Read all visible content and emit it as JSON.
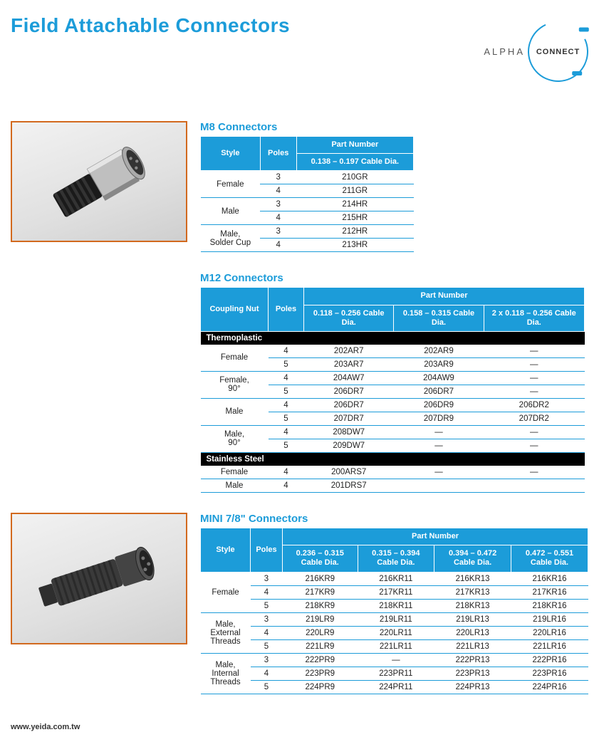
{
  "page": {
    "title": "Field Attachable Connectors",
    "footer": "www.yeida.com.tw"
  },
  "logo": {
    "left": "ALPHA",
    "right": "CONNECT"
  },
  "colors": {
    "accent": "#1c9cd9",
    "img_border": "#d2691e",
    "section_row_bg": "#000000"
  },
  "m8": {
    "title": "M8 Connectors",
    "headers": {
      "style": "Style",
      "poles": "Poles",
      "part_number": "Part Number",
      "dia1": "0.138 – 0.197 Cable Dia."
    },
    "rows": [
      {
        "style": "Female",
        "poles": "3",
        "pn": "210GR"
      },
      {
        "style": "",
        "poles": "4",
        "pn": "211GR"
      },
      {
        "style": "Male",
        "poles": "3",
        "pn": "214HR"
      },
      {
        "style": "",
        "poles": "4",
        "pn": "215HR"
      },
      {
        "style": "Male, Solder Cup",
        "poles": "3",
        "pn": "212HR"
      },
      {
        "style": "",
        "poles": "4",
        "pn": "213HR"
      }
    ]
  },
  "m12": {
    "title": "M12 Connectors",
    "headers": {
      "coupling": "Coupling Nut",
      "poles": "Poles",
      "part_number": "Part Number",
      "dia1": "0.118 – 0.256 Cable Dia.",
      "dia2": "0.158 – 0.315 Cable Dia.",
      "dia3": "2 x 0.118 – 0.256 Cable Dia."
    },
    "section1": "Thermoplastic",
    "section2": "Stainless Steel",
    "rows": [
      {
        "style": "Female",
        "poles": "4",
        "c1": "202AR7",
        "c2": "202AR9",
        "c3": "—"
      },
      {
        "style": "",
        "poles": "5",
        "c1": "203AR7",
        "c2": "203AR9",
        "c3": "—"
      },
      {
        "style": "Female, 90°",
        "poles": "4",
        "c1": "204AW7",
        "c2": "204AW9",
        "c3": "—"
      },
      {
        "style": "",
        "poles": "5",
        "c1": "206DR7",
        "c2": "206DR7",
        "c3": "—"
      },
      {
        "style": "Male",
        "poles": "4",
        "c1": "206DR7",
        "c2": "206DR9",
        "c3": "206DR2"
      },
      {
        "style": "",
        "poles": "5",
        "c1": "207DR7",
        "c2": "207DR9",
        "c3": "207DR2"
      },
      {
        "style": "Male, 90°",
        "poles": "4",
        "c1": "208DW7",
        "c2": "—",
        "c3": "—"
      },
      {
        "style": "",
        "poles": "5",
        "c1": "209DW7",
        "c2": "—",
        "c3": "—"
      }
    ],
    "rows2": [
      {
        "style": "Female",
        "poles": "4",
        "c1": "200ARS7",
        "c2": "—",
        "c3": "—"
      },
      {
        "style": "Male",
        "poles": "4",
        "c1": "201DRS7",
        "c2": "",
        "c3": ""
      }
    ]
  },
  "mini": {
    "title": "MINI 7/8\" Connectors",
    "headers": {
      "style": "Style",
      "poles": "Poles",
      "part_number": "Part Number",
      "dia1": "0.236 – 0.315 Cable Dia.",
      "dia2": "0.315 – 0.394 Cable Dia.",
      "dia3": "0.394 – 0.472 Cable Dia.",
      "dia4": "0.472 – 0.551 Cable Dia."
    },
    "rows": [
      {
        "style": "Female",
        "poles": "3",
        "c1": "216KR9",
        "c2": "216KR11",
        "c3": "216KR13",
        "c4": "216KR16"
      },
      {
        "style": "",
        "poles": "4",
        "c1": "217KR9",
        "c2": "217KR11",
        "c3": "217KR13",
        "c4": "217KR16"
      },
      {
        "style": "",
        "poles": "5",
        "c1": "218KR9",
        "c2": "218KR11",
        "c3": "218KR13",
        "c4": "218KR16"
      },
      {
        "style": "Male, External Threads",
        "poles": "3",
        "c1": "219LR9",
        "c2": "219LR11",
        "c3": "219LR13",
        "c4": "219LR16"
      },
      {
        "style": "",
        "poles": "4",
        "c1": "220LR9",
        "c2": "220LR11",
        "c3": "220LR13",
        "c4": "220LR16"
      },
      {
        "style": "",
        "poles": "5",
        "c1": "221LR9",
        "c2": "221LR11",
        "c3": "221LR13",
        "c4": "221LR16"
      },
      {
        "style": "Male, Internal Threads",
        "poles": "3",
        "c1": "222PR9",
        "c2": "—",
        "c3": "222PR13",
        "c4": "222PR16"
      },
      {
        "style": "",
        "poles": "4",
        "c1": "223PR9",
        "c2": "223PR11",
        "c3": "223PR13",
        "c4": "223PR16"
      },
      {
        "style": "",
        "poles": "5",
        "c1": "224PR9",
        "c2": "224PR11",
        "c3": "224PR13",
        "c4": "224PR16"
      }
    ]
  }
}
